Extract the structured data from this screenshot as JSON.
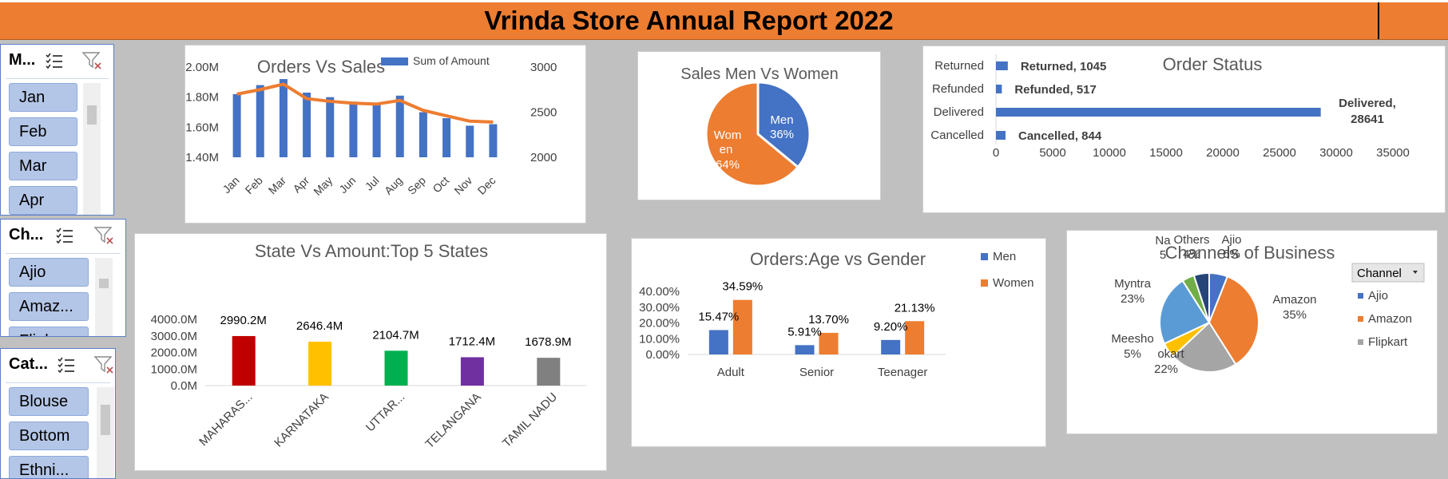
{
  "banner": {
    "title": "Vrinda Store Annual Report 2022"
  },
  "colors": {
    "blue": "#4472c4",
    "orange": "#ed7d31",
    "banner": "#ed7d31",
    "slicer_button": "#b4c6e7",
    "red": "#c00000",
    "yellow": "#ffc000",
    "green": "#00b050",
    "purple": "#7030a0",
    "gray": "#808080"
  },
  "slicers": {
    "month": {
      "header": "M...",
      "items": [
        "Jan",
        "Feb",
        "Mar",
        "Apr"
      ]
    },
    "channel": {
      "header": "Ch...",
      "items": [
        "Ajio",
        "Amaz...",
        "Flipk..."
      ]
    },
    "category": {
      "header": "Cat...",
      "items": [
        "Blouse",
        "Bottom",
        "Ethni..."
      ]
    },
    "icons": [
      "multi-select-icon",
      "clear-filter-icon"
    ]
  },
  "chart_data": [
    {
      "id": "orders_sales",
      "type": "bar",
      "title": "Orders Vs Sales",
      "legend": "Sum of Amount",
      "legend_position": "top-right",
      "categories": [
        "Jan",
        "Feb",
        "Mar",
        "Apr",
        "May",
        "Jun",
        "Jul",
        "Aug",
        "Sep",
        "Oct",
        "Nov",
        "Dec"
      ],
      "series": [
        {
          "name": "Sum of Amount",
          "type": "bar",
          "axis": "left",
          "values": [
            1.82,
            1.88,
            1.92,
            1.83,
            1.8,
            1.77,
            1.76,
            1.81,
            1.7,
            1.66,
            1.61,
            1.62
          ]
        },
        {
          "type": "line",
          "axis": "right",
          "values": [
            2700,
            2750,
            2810,
            2650,
            2620,
            2600,
            2590,
            2630,
            2520,
            2460,
            2400,
            2390
          ]
        }
      ],
      "left_ticks": [
        "2.00M",
        "1.80M",
        "1.60M",
        "1.40M"
      ],
      "right_ticks": [
        "3000",
        "2500",
        "2000"
      ],
      "ylim": [
        1.4,
        2.0
      ],
      "y2lim": [
        2000,
        3000
      ]
    },
    {
      "id": "men_women",
      "type": "pie",
      "title": "Sales Men Vs Women",
      "slices": [
        {
          "label": "Men",
          "value": 36,
          "text": "36%"
        },
        {
          "label": "Women",
          "value": 64,
          "text": "64%"
        }
      ],
      "label_lines": {
        "men": "Men",
        "women_1": "Wom",
        "women_2": "en"
      }
    },
    {
      "id": "order_status",
      "type": "bar",
      "orientation": "horizontal",
      "title": "Order Status",
      "categories": [
        "Returned",
        "Refunded",
        "Delivered",
        "Cancelled"
      ],
      "values": [
        1045,
        517,
        28641,
        844
      ],
      "labels": [
        "Returned, 1045",
        "Refunded, 517",
        "Delivered,",
        "Cancelled, 844"
      ],
      "delivered_value_line": "28641",
      "x_ticks": [
        "0",
        "5000",
        "10000",
        "15000",
        "20000",
        "25000",
        "30000",
        "35000"
      ],
      "xlim": [
        0,
        35000
      ]
    },
    {
      "id": "state_amount",
      "type": "bar",
      "title": "State Vs Amount:Top 5 States",
      "categories": [
        "MAHARAS...",
        "KARNATAKA",
        "UTTAR...",
        "TELANGANA",
        "TAMIL NADU"
      ],
      "values": [
        2990.2,
        2646.4,
        2104.7,
        1712.4,
        1678.9
      ],
      "labels": [
        "2990.2M",
        "2646.4M",
        "2104.7M",
        "1712.4M",
        "1678.9M"
      ],
      "y_ticks": [
        "4000.0M",
        "3000.0M",
        "2000.0M",
        "1000.0M",
        "0.0M"
      ],
      "ylim": [
        0,
        4000
      ]
    },
    {
      "id": "age_gender",
      "type": "bar",
      "title": "Orders:Age vs Gender",
      "categories": [
        "Adult",
        "Senior",
        "Teenager"
      ],
      "series": [
        {
          "name": "Men",
          "values": [
            15.47,
            5.91,
            9.2
          ],
          "labels": [
            "15.47%",
            "5.91%",
            "9.20%"
          ]
        },
        {
          "name": "Women",
          "values": [
            34.59,
            13.7,
            21.13
          ],
          "labels": [
            "34.59%",
            "13.70%",
            "21.13%"
          ]
        }
      ],
      "y_ticks": [
        "40.00%",
        "30.00%",
        "20.00%",
        "10.00%",
        "0.00%"
      ],
      "ylim": [
        0,
        40
      ],
      "legend_position": "right"
    },
    {
      "id": "channels",
      "type": "pie",
      "title": "Channels of Business",
      "slices": [
        {
          "label": "Ajio",
          "value": 6
        },
        {
          "label": "Amazon",
          "value": 35
        },
        {
          "label": "Flipkart",
          "value": 22
        },
        {
          "label": "Meesho",
          "value": 5
        },
        {
          "label": "Myntra",
          "value": 23
        },
        {
          "label": "Others",
          "value": 4
        },
        {
          "label": "Nalli",
          "value": 5
        }
      ],
      "labels": {
        "ajio": [
          "Ajio",
          "6%"
        ],
        "amazon": [
          "Amazon",
          "35%"
        ],
        "flipkart": [
          "okart",
          "22%"
        ],
        "meesho": [
          "Meesho",
          "5%"
        ],
        "myntra": [
          "Myntra",
          "23%"
        ],
        "others": [
          "Others",
          "4%"
        ],
        "nalli": [
          "Na",
          "5"
        ]
      },
      "legend_header": "Channel",
      "legend_items": [
        "Ajio",
        "Amazon",
        "Flipkart"
      ]
    }
  ]
}
